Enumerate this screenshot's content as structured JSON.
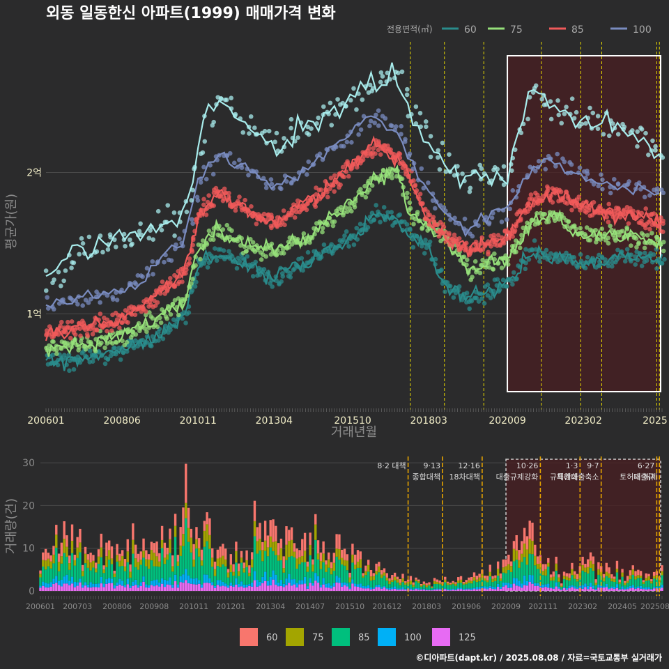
{
  "title": "외동 일동한신 아파트(1999) 매매가격 변화",
  "legend_title": "전용면적(㎡)",
  "footer": "©디아파트(dapt.kr) / 2025.08.08 / 자료=국토교통부 실거래가",
  "colors": {
    "background": "#2b2b2c",
    "grid": "#4a4a4a",
    "policy_line": "#e6d800",
    "policy_line_bottom": "#e6a400",
    "highlight_fill": "#4a1f22",
    "highlight_border": "#ffffff"
  },
  "chart_data": [
    {
      "type": "line",
      "panel": "price",
      "xlabel": "거래년월",
      "ylabel": "평균가(원)",
      "x_ticks": [
        "200601",
        "200806",
        "201011",
        "201304",
        "201510",
        "201803",
        "202009",
        "202302",
        "2025"
      ],
      "y_ticks": [
        {
          "value": 1.0,
          "label": "1억"
        },
        {
          "value": 2.0,
          "label": "2억"
        }
      ],
      "ylim": [
        0.35,
        2.95
      ],
      "xlim": [
        "2006-01",
        "2025-08"
      ],
      "x_format": "YYYY-MM",
      "y_unit": "억원",
      "series": [
        {
          "name": "60",
          "color": "#2a8c8c",
          "keypoints": [
            [
              "2006-01",
              0.65
            ],
            [
              "2007-01",
              0.68
            ],
            [
              "2008-06",
              0.74
            ],
            [
              "2009-06",
              0.82
            ],
            [
              "2010-06",
              0.98
            ],
            [
              "2010-11",
              1.35
            ],
            [
              "2011-06",
              1.42
            ],
            [
              "2012-06",
              1.35
            ],
            [
              "2013-04",
              1.25
            ],
            [
              "2014-06",
              1.38
            ],
            [
              "2015-10",
              1.55
            ],
            [
              "2016-06",
              1.7
            ],
            [
              "2017-03",
              1.68
            ],
            [
              "2017-08",
              1.55
            ],
            [
              "2018-03",
              1.45
            ],
            [
              "2018-09",
              1.2
            ],
            [
              "2019-06",
              1.1
            ],
            [
              "2020-09",
              1.22
            ],
            [
              "2021-06",
              1.45
            ],
            [
              "2022-03",
              1.4
            ],
            [
              "2023-02",
              1.35
            ],
            [
              "2024-05",
              1.4
            ],
            [
              "2025-08",
              1.38
            ]
          ]
        },
        {
          "name": "75",
          "color": "#96e07a",
          "keypoints": [
            [
              "2006-01",
              0.76
            ],
            [
              "2007-01",
              0.78
            ],
            [
              "2008-06",
              0.84
            ],
            [
              "2009-06",
              0.95
            ],
            [
              "2010-06",
              1.1
            ],
            [
              "2010-11",
              1.45
            ],
            [
              "2011-06",
              1.6
            ],
            [
              "2012-06",
              1.48
            ],
            [
              "2013-04",
              1.45
            ],
            [
              "2014-06",
              1.55
            ],
            [
              "2015-10",
              1.8
            ],
            [
              "2016-06",
              1.95
            ],
            [
              "2017-03",
              2.0
            ],
            [
              "2017-08",
              1.7
            ],
            [
              "2018-03",
              1.6
            ],
            [
              "2018-09",
              1.55
            ],
            [
              "2019-06",
              1.3
            ],
            [
              "2020-09",
              1.4
            ],
            [
              "2021-06",
              1.65
            ],
            [
              "2022-03",
              1.7
            ],
            [
              "2023-02",
              1.55
            ],
            [
              "2024-05",
              1.55
            ],
            [
              "2025-08",
              1.5
            ]
          ]
        },
        {
          "name": "85",
          "color": "#f05a5a",
          "keypoints": [
            [
              "2006-01",
              0.85
            ],
            [
              "2007-01",
              0.9
            ],
            [
              "2008-06",
              0.96
            ],
            [
              "2009-06",
              1.12
            ],
            [
              "2010-06",
              1.3
            ],
            [
              "2010-11",
              1.7
            ],
            [
              "2011-06",
              1.85
            ],
            [
              "2012-06",
              1.72
            ],
            [
              "2013-04",
              1.65
            ],
            [
              "2014-06",
              1.8
            ],
            [
              "2015-10",
              2.05
            ],
            [
              "2016-06",
              2.2
            ],
            [
              "2017-03",
              2.1
            ],
            [
              "2017-08",
              1.95
            ],
            [
              "2018-03",
              1.65
            ],
            [
              "2018-09",
              1.55
            ],
            [
              "2019-06",
              1.45
            ],
            [
              "2020-09",
              1.55
            ],
            [
              "2021-06",
              1.8
            ],
            [
              "2022-03",
              1.85
            ],
            [
              "2023-02",
              1.75
            ],
            [
              "2024-05",
              1.7
            ],
            [
              "2025-08",
              1.65
            ]
          ]
        },
        {
          "name": "100",
          "color": "#7a8cc0",
          "keypoints": [
            [
              "2006-01",
              1.05
            ],
            [
              "2007-01",
              1.1
            ],
            [
              "2008-06",
              1.15
            ],
            [
              "2009-06",
              1.35
            ],
            [
              "2010-06",
              1.55
            ],
            [
              "2010-11",
              1.95
            ],
            [
              "2011-06",
              2.15
            ],
            [
              "2012-06",
              2.0
            ],
            [
              "2013-04",
              1.9
            ],
            [
              "2014-06",
              2.05
            ],
            [
              "2015-10",
              2.3
            ],
            [
              "2016-06",
              2.4
            ],
            [
              "2017-03",
              2.3
            ],
            [
              "2017-08",
              2.1
            ],
            [
              "2018-03",
              1.85
            ],
            [
              "2018-09",
              1.7
            ],
            [
              "2019-06",
              1.6
            ],
            [
              "2020-09",
              1.75
            ],
            [
              "2021-06",
              2.05
            ],
            [
              "2022-03",
              2.1
            ],
            [
              "2023-02",
              1.95
            ],
            [
              "2024-05",
              1.9
            ],
            [
              "2025-08",
              1.85
            ]
          ]
        },
        {
          "name": "125",
          "color": "#a8ecec",
          "keypoints": [
            [
              "2006-01",
              1.2
            ],
            [
              "2007-01",
              1.45
            ],
            [
              "2008-06",
              1.55
            ],
            [
              "2009-06",
              1.6
            ],
            [
              "2010-06",
              1.7
            ],
            [
              "2010-11",
              2.2
            ],
            [
              "2011-06",
              2.55
            ],
            [
              "2012-06",
              2.3
            ],
            [
              "2013-04",
              2.2
            ],
            [
              "2014-06",
              2.35
            ],
            [
              "2015-10",
              2.55
            ],
            [
              "2016-06",
              2.65
            ],
            [
              "2017-03",
              2.7
            ],
            [
              "2017-08",
              2.4
            ],
            [
              "2018-03",
              2.2
            ],
            [
              "2018-09",
              2.05
            ],
            [
              "2019-06",
              1.95
            ],
            [
              "2020-09",
              2.0
            ],
            [
              "2021-06",
              2.6
            ],
            [
              "2022-03",
              2.45
            ],
            [
              "2023-02",
              2.4
            ],
            [
              "2024-05",
              2.3
            ],
            [
              "2025-08",
              2.15
            ]
          ]
        }
      ],
      "policy_lines": [
        "2017-08",
        "2018-09",
        "2019-12",
        "2021-10",
        "2023-01",
        "2023-09",
        "2025-06",
        "2025-07"
      ],
      "highlight": {
        "from": "2020-09",
        "to": "2025-08"
      }
    },
    {
      "type": "bar",
      "panel": "volume",
      "ylabel": "거래량(건)",
      "y_ticks": [
        0,
        10,
        20,
        30
      ],
      "ylim": [
        0,
        31
      ],
      "x_ticks": [
        "200601",
        "200703",
        "200806",
        "200908",
        "201011",
        "201201",
        "201304",
        "201407",
        "201510",
        "201612",
        "201803",
        "201906",
        "202009",
        "202111",
        "202302",
        "202405",
        "202508"
      ],
      "stack_order": [
        "125",
        "100",
        "85",
        "75",
        "60"
      ],
      "series_colors": {
        "60": "#f8766d",
        "75": "#a3a500",
        "85": "#00bf7d",
        "100": "#00b0f6",
        "125": "#e76bf3"
      },
      "monthly_totals_shape": [
        [
          "2006-01",
          8
        ],
        [
          "2006-06",
          14
        ],
        [
          "2007-03",
          12
        ],
        [
          "2007-09",
          9
        ],
        [
          "2008-06",
          10
        ],
        [
          "2009-01",
          11
        ],
        [
          "2009-08",
          12
        ],
        [
          "2010-06",
          16
        ],
        [
          "2010-08",
          31
        ],
        [
          "2010-11",
          14
        ],
        [
          "2011-06",
          12
        ],
        [
          "2012-01",
          8
        ],
        [
          "2012-06",
          10
        ],
        [
          "2013-04",
          17
        ],
        [
          "2013-10",
          15
        ],
        [
          "2014-07",
          12
        ],
        [
          "2015-03",
          11
        ],
        [
          "2015-10",
          9
        ],
        [
          "2016-06",
          6
        ],
        [
          "2016-12",
          4
        ],
        [
          "2017-08",
          3
        ],
        [
          "2018-03",
          2
        ],
        [
          "2019-06",
          3
        ],
        [
          "2019-12",
          5
        ],
        [
          "2020-09",
          8
        ],
        [
          "2021-03",
          15
        ],
        [
          "2021-10",
          10
        ],
        [
          "2022-06",
          4
        ],
        [
          "2023-02",
          6
        ],
        [
          "2024-05",
          5
        ],
        [
          "2025-08",
          4
        ]
      ],
      "policy_annotations": [
        {
          "date": "2017-08",
          "lines": [
            "8·2 대책"
          ]
        },
        {
          "date": "2018-09",
          "lines": [
            "9·13",
            "종합대책"
          ]
        },
        {
          "date": "2019-12",
          "lines": [
            "12·16",
            "18차대책"
          ]
        },
        {
          "date": "2021-10",
          "lines": [
            "10·26",
            "대출규제강화"
          ]
        },
        {
          "date": "2023-01",
          "lines": [
            "1·3",
            "규제완화"
          ]
        },
        {
          "date": "2023-09",
          "lines": [
            "9·7",
            "특례대출축소"
          ]
        },
        {
          "date": "2025-06",
          "lines": [
            "6·27",
            "대출규"
          ]
        },
        {
          "date": "2025-07",
          "lines": [
            "",
            "토허제 해제"
          ]
        }
      ],
      "highlight": {
        "from": "2020-09",
        "to": "2025-08"
      }
    }
  ]
}
